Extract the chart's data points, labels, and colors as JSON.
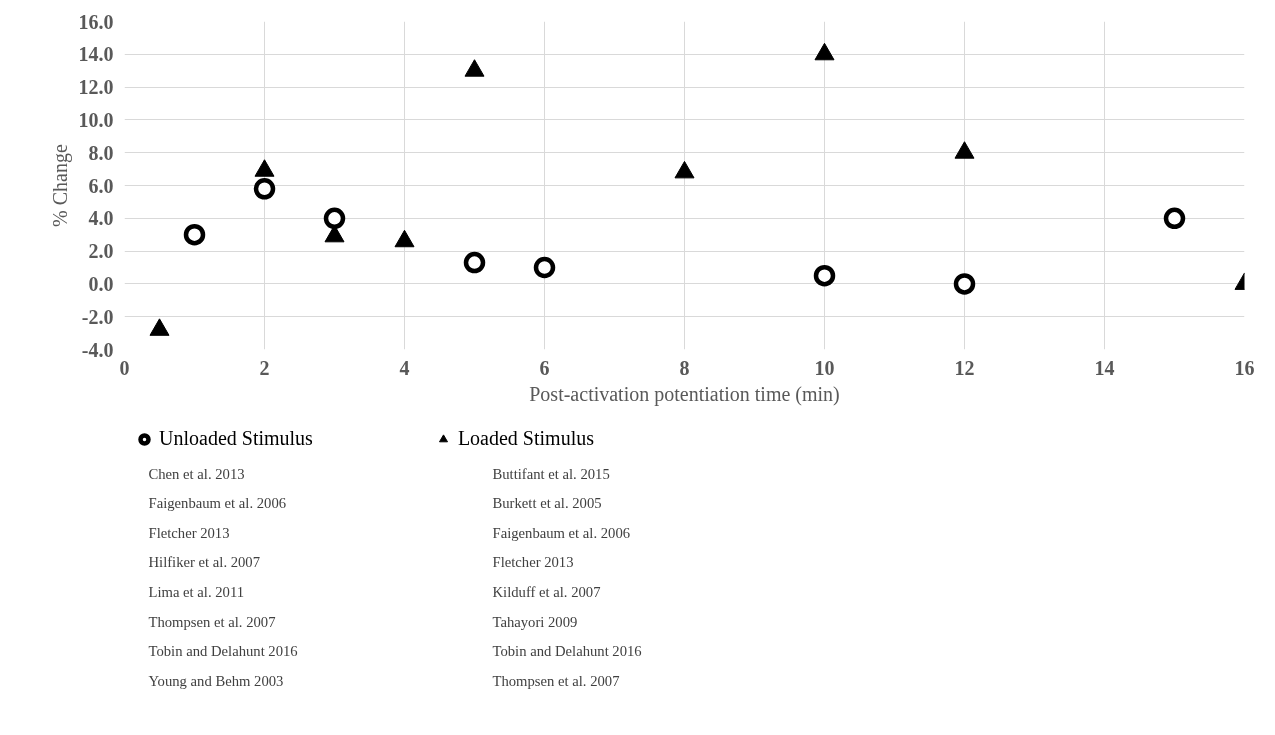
{
  "chart_data": {
    "type": "scatter",
    "xlabel": "Post-activation potentiation time (min)",
    "ylabel": "% Change",
    "xlim": [
      0,
      16
    ],
    "xticks": [
      0,
      2,
      4,
      6,
      8,
      10,
      12,
      14,
      16
    ],
    "ylim": [
      -4,
      16
    ],
    "yticks": [
      {
        "value": -4,
        "label": "-4.0"
      },
      {
        "value": -2,
        "label": "-2.0"
      },
      {
        "value": 0,
        "label": "0.0"
      },
      {
        "value": 2,
        "label": "2.0"
      },
      {
        "value": 4,
        "label": "4.0"
      },
      {
        "value": 6,
        "label": "6.0"
      },
      {
        "value": 8,
        "label": "8.0"
      },
      {
        "value": 10,
        "label": "10.0"
      },
      {
        "value": 12,
        "label": "12.0"
      },
      {
        "value": 14,
        "label": "14.0"
      },
      {
        "value": 16,
        "label": "16.0"
      }
    ],
    "grid": true,
    "legend": "bottom",
    "series": [
      {
        "name": "Unloaded Stimulus",
        "color": "#000000",
        "marker": "circle",
        "x": [
          1,
          2,
          3,
          5,
          6,
          10,
          12,
          15
        ],
        "values": [
          3.0,
          5.8,
          4.0,
          1.3,
          1.0,
          0.5,
          0.0,
          4.0
        ]
      },
      {
        "name": "Loaded Stimulus",
        "color": "#000000",
        "marker": "triangle",
        "x": [
          0.5,
          2,
          3,
          4,
          5,
          8,
          10,
          12,
          16
        ],
        "values": [
          -2.8,
          6.9,
          2.9,
          2.6,
          13.0,
          6.8,
          14.0,
          8.0,
          0.0
        ]
      }
    ],
    "annotations": [
      "Chen et al. 2013",
      "Faigenbaum et al. 2006",
      "Fletcher 2013",
      "Hilfiker et al. 2007",
      "Lima et al. 2011",
      "Thompsen et al. 2007",
      "Tobin and Delahunt 2016",
      "Young and Behm 2003",
      "Buttifant et al. 2015",
      "Burkett et al. 2005",
      "Faigenbaum et al. 2006",
      "Fletcher 2013",
      "Kilduff et al. 2007",
      "Tahayori 2009",
      "Tobin and Delahunt 2016",
      "Thompsen et al. 2007"
    ]
  }
}
